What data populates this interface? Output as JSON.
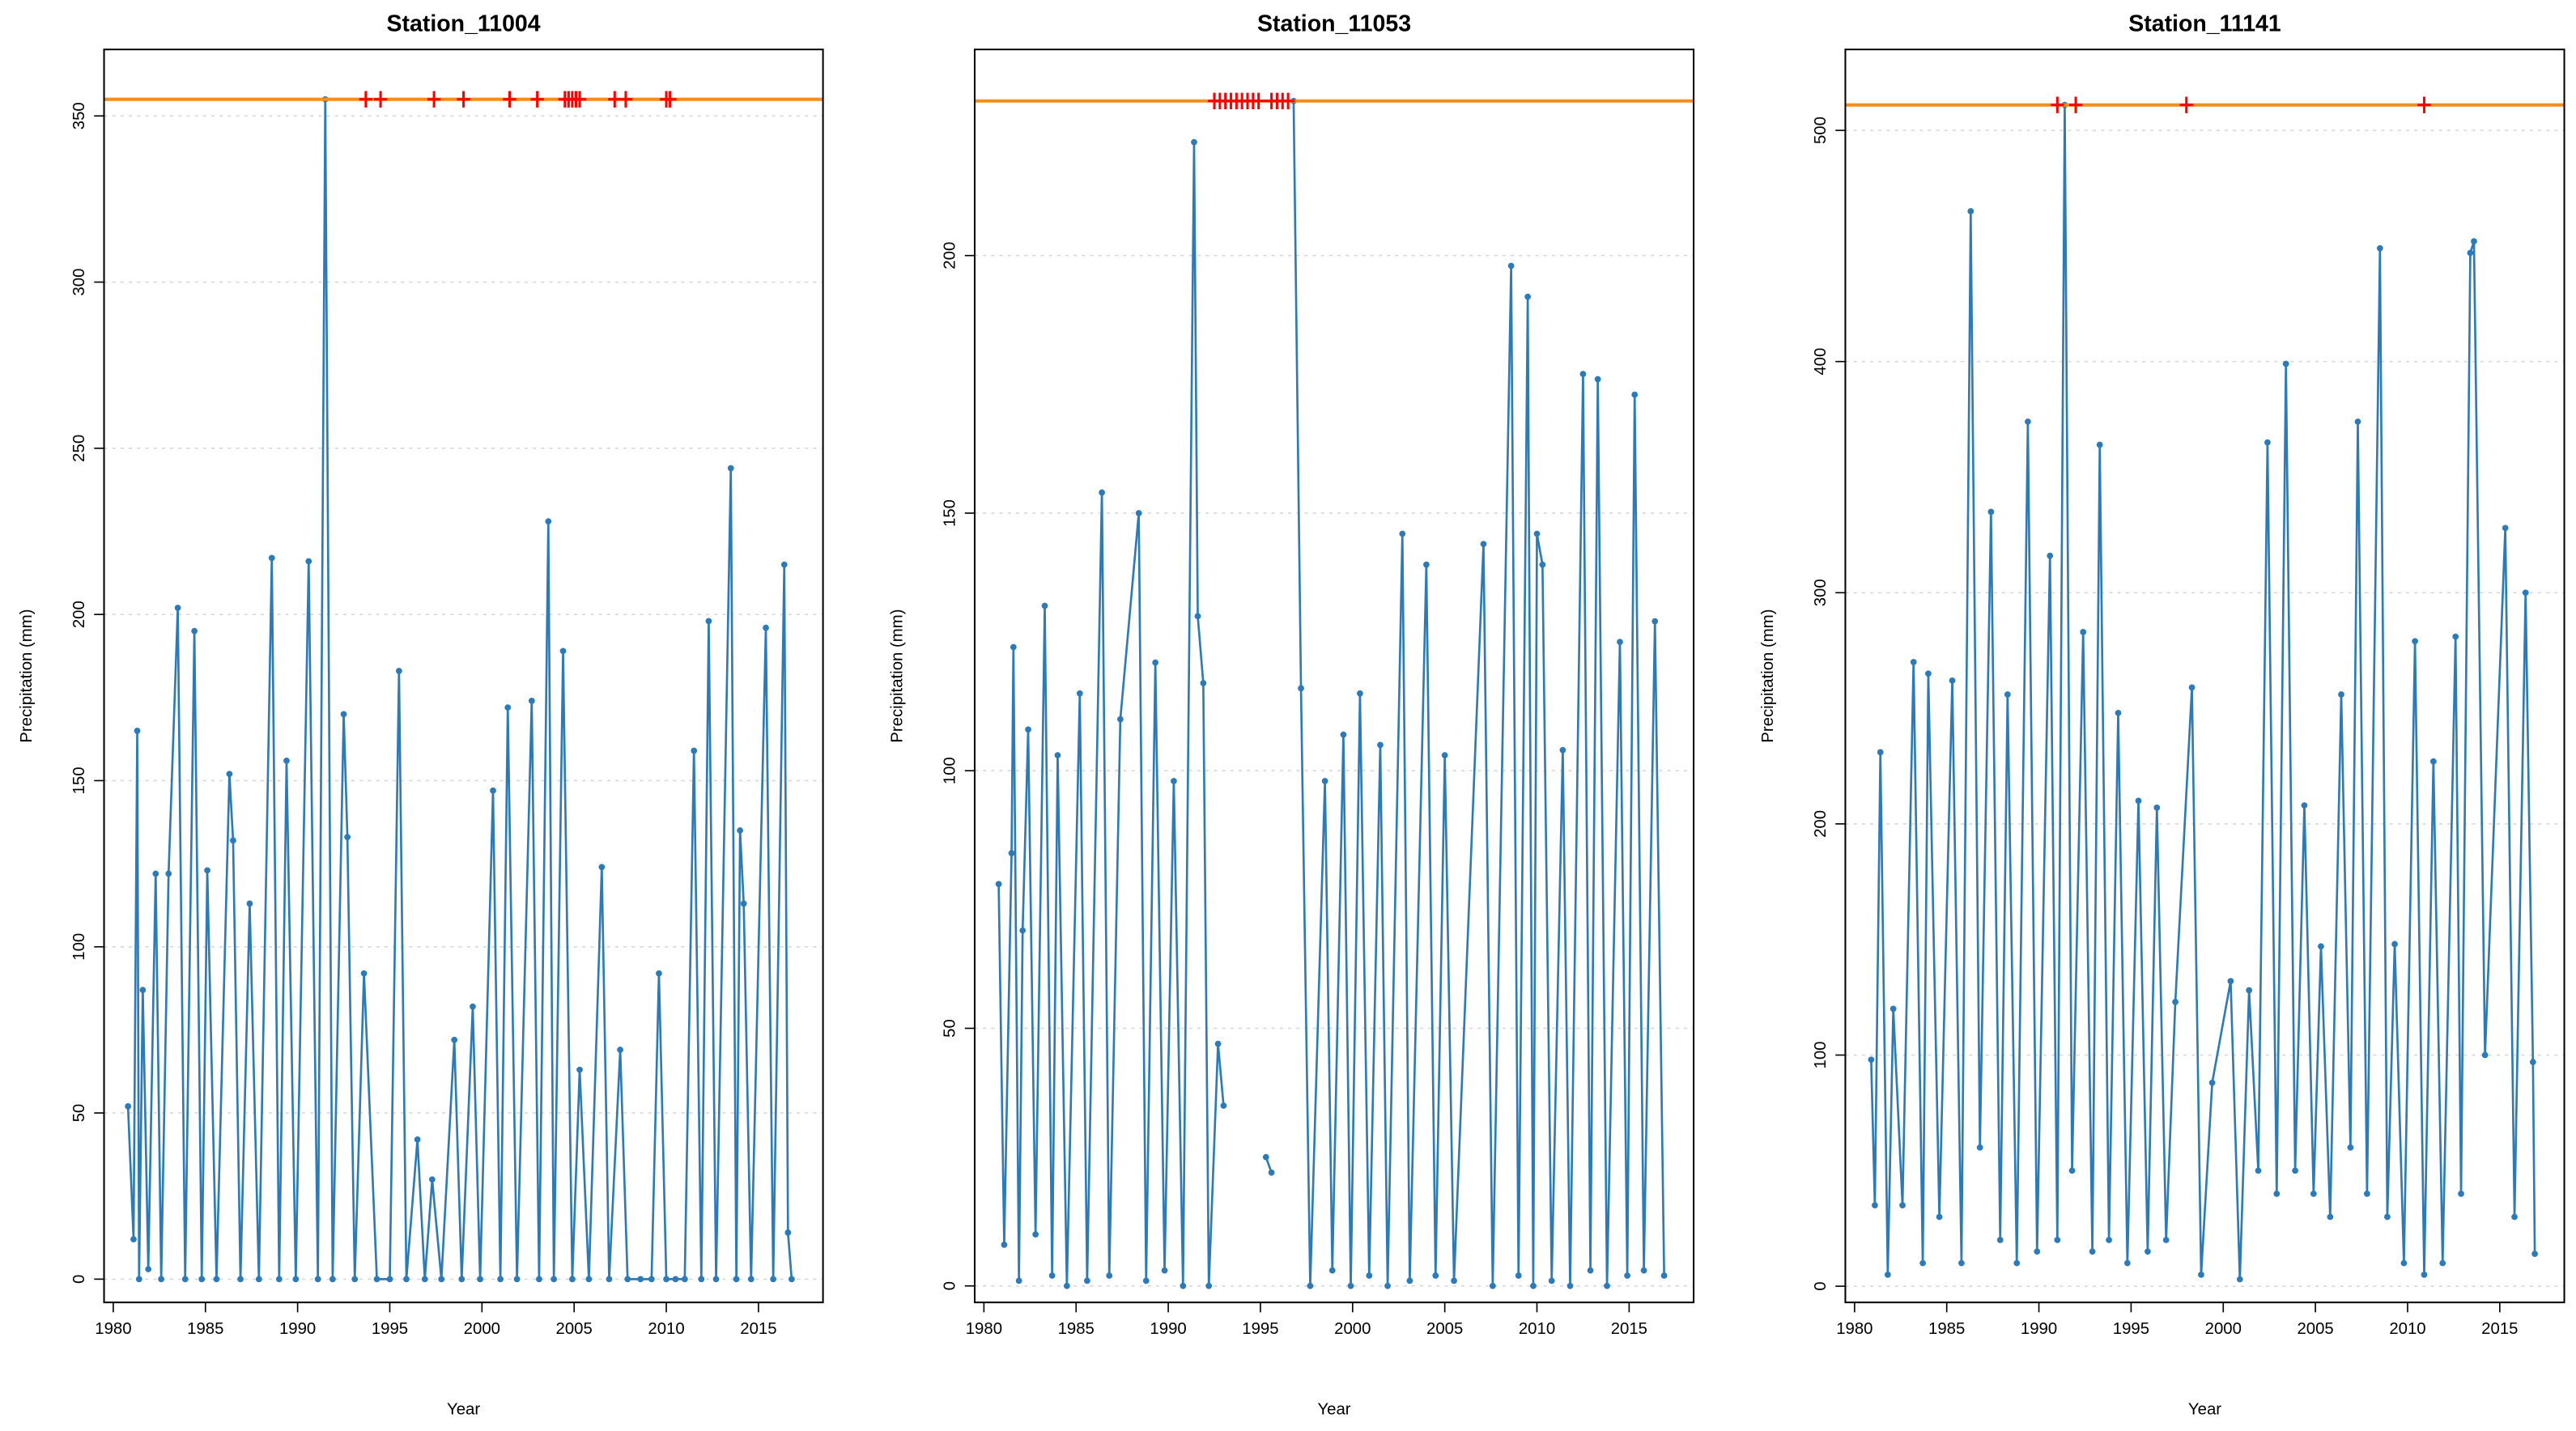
{
  "chart_data": [
    {
      "type": "line",
      "title": "Station_11004",
      "x_label": "Year",
      "y_label": "Precipitation (mm)",
      "x": [
        1980.8,
        1981.1,
        1981.3,
        1981.4,
        1981.6,
        1981.9,
        1982.3,
        1982.6,
        1983.0,
        1983.5,
        1983.9,
        1984.4,
        1984.8,
        1985.1,
        1985.6,
        1986.3,
        1986.5,
        1986.9,
        1987.4,
        1987.9,
        1988.6,
        1989.0,
        1989.4,
        1989.9,
        1990.6,
        1991.1,
        1991.5,
        1991.9,
        1992.5,
        1992.7,
        1993.1,
        1993.6,
        1994.3,
        1995.0,
        1995.5,
        1995.9,
        1996.5,
        1996.9,
        1997.3,
        1997.8,
        1998.5,
        1998.9,
        1999.5,
        1999.9,
        2000.6,
        2001.0,
        2001.4,
        2001.9,
        2002.7,
        2003.1,
        2003.6,
        2003.9,
        2004.4,
        2004.9,
        2005.3,
        2005.8,
        2006.5,
        2006.9,
        2007.5,
        2007.9,
        2008.6,
        2009.2,
        2009.6,
        2010.0,
        2010.5,
        2011.0,
        2011.5,
        2011.9,
        2012.3,
        2012.7,
        2013.5,
        2013.8,
        2014.0,
        2014.2,
        2014.6,
        2015.4,
        2015.8,
        2016.4,
        2016.6,
        2016.8
      ],
      "series": [
        {
          "color": "#2b7bba",
          "values": [
            52,
            12,
            165,
            0,
            87,
            3,
            122,
            0,
            122,
            202,
            0,
            195,
            0,
            123,
            0,
            152,
            132,
            0,
            113,
            0,
            217,
            0,
            156,
            0,
            216,
            0,
            355,
            0,
            170,
            133,
            0,
            92,
            0,
            0,
            183,
            0,
            42,
            0,
            30,
            0,
            72,
            0,
            82,
            0,
            147,
            0,
            172,
            0,
            174,
            0,
            228,
            0,
            189,
            0,
            63,
            0,
            124,
            0,
            69,
            0,
            0,
            0,
            92,
            0,
            0,
            0,
            159,
            0,
            198,
            0,
            244,
            0,
            135,
            113,
            0,
            196,
            0,
            215,
            14,
            0
          ]
        }
      ],
      "xlim": [
        1979.5,
        2018.5
      ],
      "ylim": [
        -7,
        370
      ],
      "xticks": [
        1980,
        1985,
        1990,
        1995,
        2000,
        2005,
        2010,
        2015
      ],
      "yticks": [
        0,
        50,
        100,
        150,
        200,
        250,
        300,
        350
      ],
      "grid": true,
      "threshold": 355,
      "threshold_color": "#f28e1c",
      "flags": [
        1993.7,
        1994.5,
        1997.4,
        1999.0,
        2001.5,
        2003.0,
        2004.5,
        2004.7,
        2004.9,
        2005.1,
        2005.3,
        2007.2,
        2007.8,
        2010.0,
        2010.2
      ],
      "flag_color": "#ff0000"
    },
    {
      "type": "line",
      "title": "Station_11053",
      "x_label": "Year",
      "y_label": "Precipitation (mm)",
      "x": [
        1980.8,
        1981.1,
        1981.5,
        1981.6,
        1981.9,
        1982.1,
        1982.4,
        1982.8,
        1983.3,
        1983.7,
        1984.0,
        1984.5,
        1985.2,
        1985.6,
        1986.4,
        1986.8,
        1987.4,
        1988.4,
        1988.8,
        1989.3,
        1989.8,
        1990.3,
        1990.8,
        1991.4,
        1991.6,
        1991.9,
        1992.2,
        1992.7,
        1993.0,
        1995.1,
        1995.3,
        1995.6,
        1996.6,
        1996.8,
        1997.2,
        1997.7,
        1998.5,
        1998.9,
        1999.5,
        1999.9,
        2000.4,
        2000.9,
        2001.5,
        2001.9,
        2002.7,
        2003.1,
        2004.0,
        2004.5,
        2005.0,
        2005.5,
        2007.1,
        2007.6,
        2008.6,
        2009.0,
        2009.5,
        2009.8,
        2010.0,
        2010.3,
        2010.8,
        2011.4,
        2011.8,
        2012.5,
        2012.9,
        2013.3,
        2013.8,
        2014.5,
        2014.9,
        2015.3,
        2015.8,
        2016.4,
        2016.9
      ],
      "series": [
        {
          "color": "#2b7bba",
          "values": [
            78,
            8,
            84,
            124,
            1,
            69,
            108,
            10,
            132,
            2,
            103,
            0,
            115,
            1,
            154,
            2,
            110,
            150,
            1,
            121,
            3,
            98,
            0,
            222,
            130,
            117,
            0,
            47,
            35,
            null,
            25,
            22,
            null,
            230,
            116,
            0,
            98,
            3,
            107,
            0,
            115,
            2,
            105,
            0,
            146,
            1,
            140,
            2,
            103,
            1,
            144,
            0,
            198,
            2,
            192,
            0,
            146,
            140,
            1,
            104,
            0,
            177,
            3,
            176,
            0,
            125,
            2,
            173,
            3,
            129,
            2
          ]
        }
      ],
      "xlim": [
        1979.5,
        2018.5
      ],
      "ylim": [
        -3.2,
        240
      ],
      "xticks": [
        1980,
        1985,
        1990,
        1995,
        2000,
        2005,
        2010,
        2015
      ],
      "yticks": [
        0,
        50,
        100,
        150,
        200
      ],
      "grid": true,
      "threshold": 230,
      "threshold_color": "#f28e1c",
      "flags": [
        1992.5,
        1992.8,
        1993.1,
        1993.4,
        1993.7,
        1994.0,
        1994.3,
        1994.6,
        1994.9,
        1995.6,
        1995.9,
        1996.2,
        1996.5
      ],
      "flag_color": "#ff0000"
    },
    {
      "type": "line",
      "title": "Station_11141",
      "x_label": "Year",
      "y_label": "Precipitation (mm)",
      "x": [
        1980.9,
        1981.1,
        1981.4,
        1981.8,
        1982.1,
        1982.6,
        1983.2,
        1983.7,
        1984.0,
        1984.6,
        1985.3,
        1985.8,
        1986.3,
        1986.8,
        1987.4,
        1987.9,
        1988.3,
        1988.8,
        1989.4,
        1989.9,
        1990.6,
        1991.0,
        1991.4,
        1991.8,
        1992.4,
        1992.9,
        1993.3,
        1993.8,
        1994.3,
        1994.8,
        1995.4,
        1995.9,
        1996.4,
        1996.9,
        1997.4,
        1998.3,
        1998.8,
        1999.4,
        2000.4,
        2000.9,
        2001.4,
        2001.9,
        2002.4,
        2002.9,
        2003.4,
        2003.9,
        2004.4,
        2004.9,
        2005.3,
        2005.8,
        2006.4,
        2006.9,
        2007.3,
        2007.8,
        2008.5,
        2008.9,
        2009.3,
        2009.8,
        2010.4,
        2010.9,
        2011.4,
        2011.9,
        2012.6,
        2012.9,
        2013.4,
        2013.6,
        2014.2,
        2015.3,
        2015.8,
        2016.4,
        2016.8,
        2016.9
      ],
      "series": [
        {
          "color": "#2b7bba",
          "values": [
            98,
            35,
            231,
            5,
            120,
            35,
            270,
            10,
            265,
            30,
            262,
            10,
            465,
            60,
            335,
            20,
            256,
            10,
            374,
            15,
            316,
            20,
            511,
            50,
            283,
            15,
            364,
            20,
            248,
            10,
            210,
            15,
            207,
            20,
            123,
            259,
            5,
            88,
            132,
            3,
            128,
            50,
            365,
            40,
            399,
            50,
            208,
            40,
            147,
            30,
            256,
            60,
            374,
            40,
            449,
            30,
            148,
            10,
            279,
            5,
            227,
            10,
            281,
            40,
            447,
            452,
            100,
            328,
            30,
            300,
            97,
            14
          ]
        }
      ],
      "xlim": [
        1979.5,
        2018.5
      ],
      "ylim": [
        -7,
        535
      ],
      "xticks": [
        1980,
        1985,
        1990,
        1995,
        2000,
        2005,
        2010,
        2015
      ],
      "yticks": [
        0,
        100,
        200,
        300,
        400,
        500
      ],
      "grid": true,
      "threshold": 511,
      "threshold_color": "#f28e1c",
      "flags": [
        1991.0,
        1992.0,
        1998.0,
        2010.9
      ],
      "flag_color": "#ff0000"
    }
  ]
}
